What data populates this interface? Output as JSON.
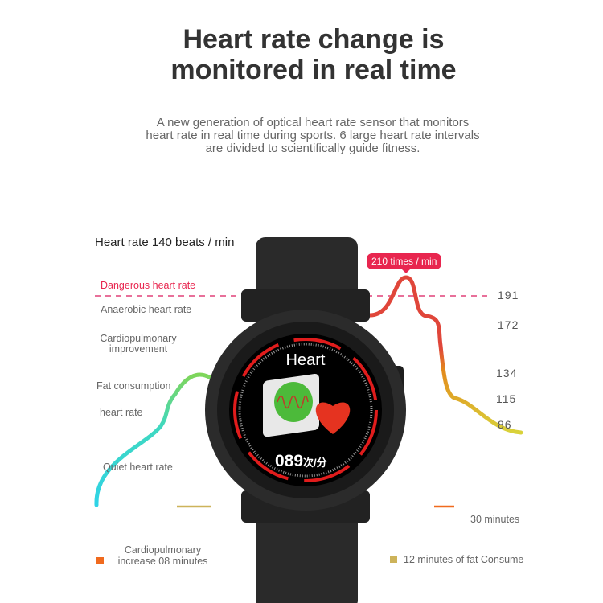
{
  "title": {
    "line1": "Heart rate change is",
    "line2": "monitored in real time"
  },
  "subtitle": {
    "line1": "A new generation of optical heart rate sensor that monitors",
    "line2": "heart rate in real time during sports. 6 large heart rate intervals",
    "line3": "are divided to scientifically guide fitness."
  },
  "heart_rate_label": "Heart rate 140 beats / min",
  "peak_label": "210 times / min",
  "zones": [
    "Dangerous heart rate",
    "Anaerobic heart rate",
    "Cardiopulmonary",
    "improvement",
    "Fat consumption",
    "heart rate",
    "Quiet heart rate"
  ],
  "values": [
    "191",
    "172",
    "134",
    "115",
    "86"
  ],
  "duration": "30 minutes",
  "legend": [
    {
      "line1": "Cardiopulmonary",
      "line2": "increase 08 minutes",
      "color": "#f06a1e"
    },
    {
      "line1": "12 minutes of fat Consume",
      "color": "#cdb35a"
    }
  ],
  "watch": {
    "screen_title": "Heart",
    "reading": "089",
    "unit": "次/分"
  },
  "colors": {
    "danger": "#e8264f",
    "cyan": "#2fd3e6",
    "green": "#6ad16a",
    "red": "#e0463a",
    "orange": "#e38a1c",
    "yellow": "#d9c93a"
  }
}
